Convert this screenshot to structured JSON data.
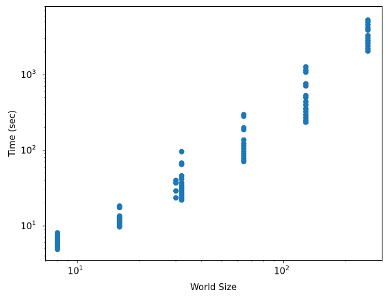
{
  "chart_data": {
    "type": "scatter",
    "title": "",
    "xlabel": "World Size",
    "ylabel": "Time (sec)",
    "xscale": "log",
    "yscale": "log",
    "xlim": [
      7,
      300
    ],
    "ylim": [
      3.5,
      8000
    ],
    "grid": false,
    "marker_color": "#1f77b4",
    "x_ticks": [
      {
        "value": 10,
        "base": "10",
        "exp": "1"
      },
      {
        "value": 100,
        "base": "10",
        "exp": "2"
      }
    ],
    "y_ticks": [
      {
        "value": 10,
        "base": "10",
        "exp": "1"
      },
      {
        "value": 100,
        "base": "10",
        "exp": "2"
      },
      {
        "value": 1000,
        "base": "10",
        "exp": "3"
      }
    ],
    "series": [
      {
        "points": [
          {
            "x": 8,
            "y": 4.9
          },
          {
            "x": 8,
            "y": 5.2
          },
          {
            "x": 8,
            "y": 5.5
          },
          {
            "x": 8,
            "y": 5.8
          },
          {
            "x": 8,
            "y": 6.0
          },
          {
            "x": 8,
            "y": 6.3
          },
          {
            "x": 8,
            "y": 6.6
          },
          {
            "x": 8,
            "y": 6.9
          },
          {
            "x": 8,
            "y": 7.2
          },
          {
            "x": 8,
            "y": 7.6
          },
          {
            "x": 8,
            "y": 8.1
          },
          {
            "x": 16,
            "y": 9.7
          },
          {
            "x": 16,
            "y": 10.1
          },
          {
            "x": 16,
            "y": 10.6
          },
          {
            "x": 16,
            "y": 11.1
          },
          {
            "x": 16,
            "y": 11.6
          },
          {
            "x": 16,
            "y": 12.1
          },
          {
            "x": 16,
            "y": 12.6
          },
          {
            "x": 16,
            "y": 13.1
          },
          {
            "x": 16,
            "y": 13.5
          },
          {
            "x": 16,
            "y": 17.5
          },
          {
            "x": 16,
            "y": 18.3
          },
          {
            "x": 30,
            "y": 23.5
          },
          {
            "x": 30,
            "y": 29
          },
          {
            "x": 30,
            "y": 37
          },
          {
            "x": 30,
            "y": 40
          },
          {
            "x": 32,
            "y": 22
          },
          {
            "x": 32,
            "y": 23.5
          },
          {
            "x": 32,
            "y": 25
          },
          {
            "x": 32,
            "y": 26.5
          },
          {
            "x": 32,
            "y": 28
          },
          {
            "x": 32,
            "y": 30
          },
          {
            "x": 32,
            "y": 32
          },
          {
            "x": 32,
            "y": 34.5
          },
          {
            "x": 32,
            "y": 37
          },
          {
            "x": 32,
            "y": 42
          },
          {
            "x": 32,
            "y": 46
          },
          {
            "x": 32,
            "y": 65
          },
          {
            "x": 32,
            "y": 68
          },
          {
            "x": 32,
            "y": 96
          },
          {
            "x": 64,
            "y": 71
          },
          {
            "x": 64,
            "y": 74
          },
          {
            "x": 64,
            "y": 78
          },
          {
            "x": 64,
            "y": 84
          },
          {
            "x": 64,
            "y": 90
          },
          {
            "x": 64,
            "y": 97
          },
          {
            "x": 64,
            "y": 106
          },
          {
            "x": 64,
            "y": 115
          },
          {
            "x": 64,
            "y": 123
          },
          {
            "x": 64,
            "y": 137
          },
          {
            "x": 64,
            "y": 188
          },
          {
            "x": 64,
            "y": 198
          },
          {
            "x": 64,
            "y": 282
          },
          {
            "x": 64,
            "y": 296
          },
          {
            "x": 128,
            "y": 235
          },
          {
            "x": 128,
            "y": 250
          },
          {
            "x": 128,
            "y": 270
          },
          {
            "x": 128,
            "y": 295
          },
          {
            "x": 128,
            "y": 325
          },
          {
            "x": 128,
            "y": 355
          },
          {
            "x": 128,
            "y": 400
          },
          {
            "x": 128,
            "y": 440
          },
          {
            "x": 128,
            "y": 500
          },
          {
            "x": 128,
            "y": 530
          },
          {
            "x": 128,
            "y": 710
          },
          {
            "x": 128,
            "y": 760
          },
          {
            "x": 128,
            "y": 1080
          },
          {
            "x": 128,
            "y": 1150
          },
          {
            "x": 128,
            "y": 1270
          },
          {
            "x": 256,
            "y": 2050
          },
          {
            "x": 256,
            "y": 2200
          },
          {
            "x": 256,
            "y": 2400
          },
          {
            "x": 256,
            "y": 2600
          },
          {
            "x": 256,
            "y": 2800
          },
          {
            "x": 256,
            "y": 3050
          },
          {
            "x": 256,
            "y": 3300
          },
          {
            "x": 256,
            "y": 3900
          },
          {
            "x": 256,
            "y": 4200
          },
          {
            "x": 256,
            "y": 4600
          },
          {
            "x": 256,
            "y": 5000
          },
          {
            "x": 256,
            "y": 5300
          }
        ]
      }
    ]
  }
}
